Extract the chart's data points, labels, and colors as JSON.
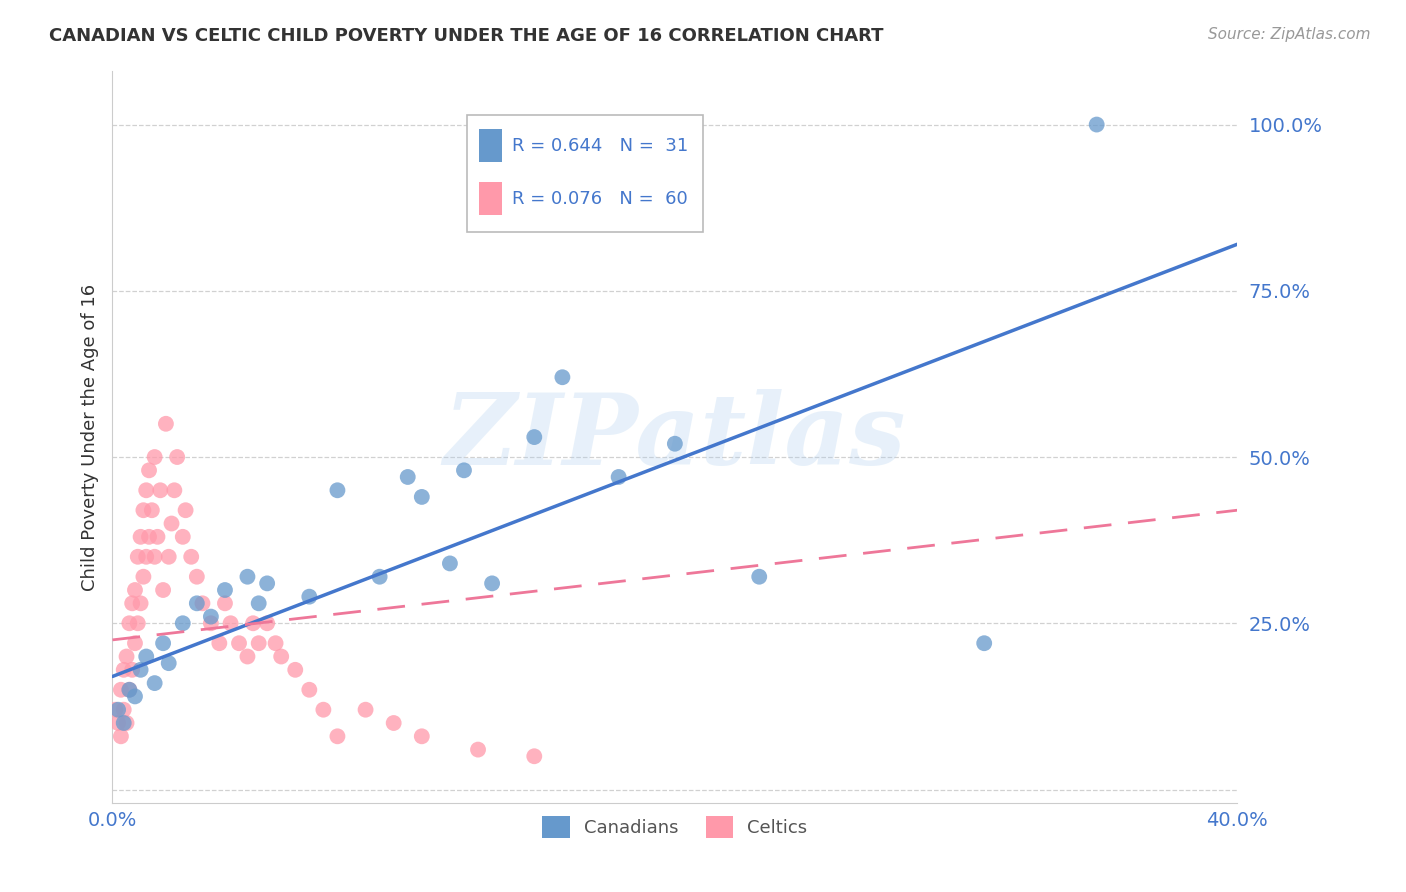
{
  "title": "CANADIAN VS CELTIC CHILD POVERTY UNDER THE AGE OF 16 CORRELATION CHART",
  "source": "Source: ZipAtlas.com",
  "ylabel": "Child Poverty Under the Age of 16",
  "watermark": "ZIPatlas",
  "xlim": [
    0.0,
    0.4
  ],
  "ylim": [
    -0.02,
    1.08
  ],
  "xticks": [
    0.0,
    0.05,
    0.1,
    0.15,
    0.2,
    0.25,
    0.3,
    0.35,
    0.4
  ],
  "yticks": [
    0.0,
    0.25,
    0.5,
    0.75,
    1.0
  ],
  "xticklabels": [
    "0.0%",
    "",
    "",
    "",
    "",
    "",
    "",
    "",
    "40.0%"
  ],
  "yticklabels": [
    "",
    "25.0%",
    "50.0%",
    "75.0%",
    "100.0%"
  ],
  "canadians_R": 0.644,
  "canadians_N": 31,
  "celtics_R": 0.076,
  "celtics_N": 60,
  "canadian_color": "#6699CC",
  "celtic_color": "#FF99AA",
  "canadian_line_color": "#4477CC",
  "celtic_line_color": "#EE7799",
  "legend_label_canadian": "Canadians",
  "legend_label_celtic": "Celtics",
  "canadians_x": [
    0.002,
    0.004,
    0.006,
    0.008,
    0.01,
    0.012,
    0.015,
    0.018,
    0.02,
    0.025,
    0.03,
    0.035,
    0.04,
    0.048,
    0.052,
    0.055,
    0.07,
    0.08,
    0.095,
    0.105,
    0.11,
    0.12,
    0.125,
    0.135,
    0.15,
    0.16,
    0.18,
    0.2,
    0.23,
    0.31,
    0.35
  ],
  "canadians_y": [
    0.12,
    0.1,
    0.15,
    0.14,
    0.18,
    0.2,
    0.16,
    0.22,
    0.19,
    0.25,
    0.28,
    0.26,
    0.3,
    0.32,
    0.28,
    0.31,
    0.29,
    0.45,
    0.32,
    0.47,
    0.44,
    0.34,
    0.48,
    0.31,
    0.53,
    0.62,
    0.47,
    0.52,
    0.32,
    0.22,
    1.0
  ],
  "celtics_x": [
    0.001,
    0.002,
    0.003,
    0.003,
    0.004,
    0.004,
    0.005,
    0.005,
    0.006,
    0.006,
    0.007,
    0.007,
    0.008,
    0.008,
    0.009,
    0.009,
    0.01,
    0.01,
    0.011,
    0.011,
    0.012,
    0.012,
    0.013,
    0.013,
    0.014,
    0.015,
    0.015,
    0.016,
    0.017,
    0.018,
    0.019,
    0.02,
    0.021,
    0.022,
    0.023,
    0.025,
    0.026,
    0.028,
    0.03,
    0.032,
    0.035,
    0.038,
    0.04,
    0.042,
    0.045,
    0.048,
    0.05,
    0.052,
    0.055,
    0.058,
    0.06,
    0.065,
    0.07,
    0.075,
    0.08,
    0.09,
    0.1,
    0.11,
    0.13,
    0.15
  ],
  "celtics_y": [
    0.12,
    0.1,
    0.08,
    0.15,
    0.12,
    0.18,
    0.1,
    0.2,
    0.15,
    0.25,
    0.18,
    0.28,
    0.22,
    0.3,
    0.25,
    0.35,
    0.28,
    0.38,
    0.32,
    0.42,
    0.35,
    0.45,
    0.38,
    0.48,
    0.42,
    0.35,
    0.5,
    0.38,
    0.45,
    0.3,
    0.55,
    0.35,
    0.4,
    0.45,
    0.5,
    0.38,
    0.42,
    0.35,
    0.32,
    0.28,
    0.25,
    0.22,
    0.28,
    0.25,
    0.22,
    0.2,
    0.25,
    0.22,
    0.25,
    0.22,
    0.2,
    0.18,
    0.15,
    0.12,
    0.08,
    0.12,
    0.1,
    0.08,
    0.06,
    0.05
  ],
  "can_line_x0": 0.0,
  "can_line_y0": 0.17,
  "can_line_x1": 0.4,
  "can_line_y1": 0.82,
  "cel_line_x0": 0.0,
  "cel_line_y0": 0.225,
  "cel_line_x1": 0.4,
  "cel_line_y1": 0.42
}
